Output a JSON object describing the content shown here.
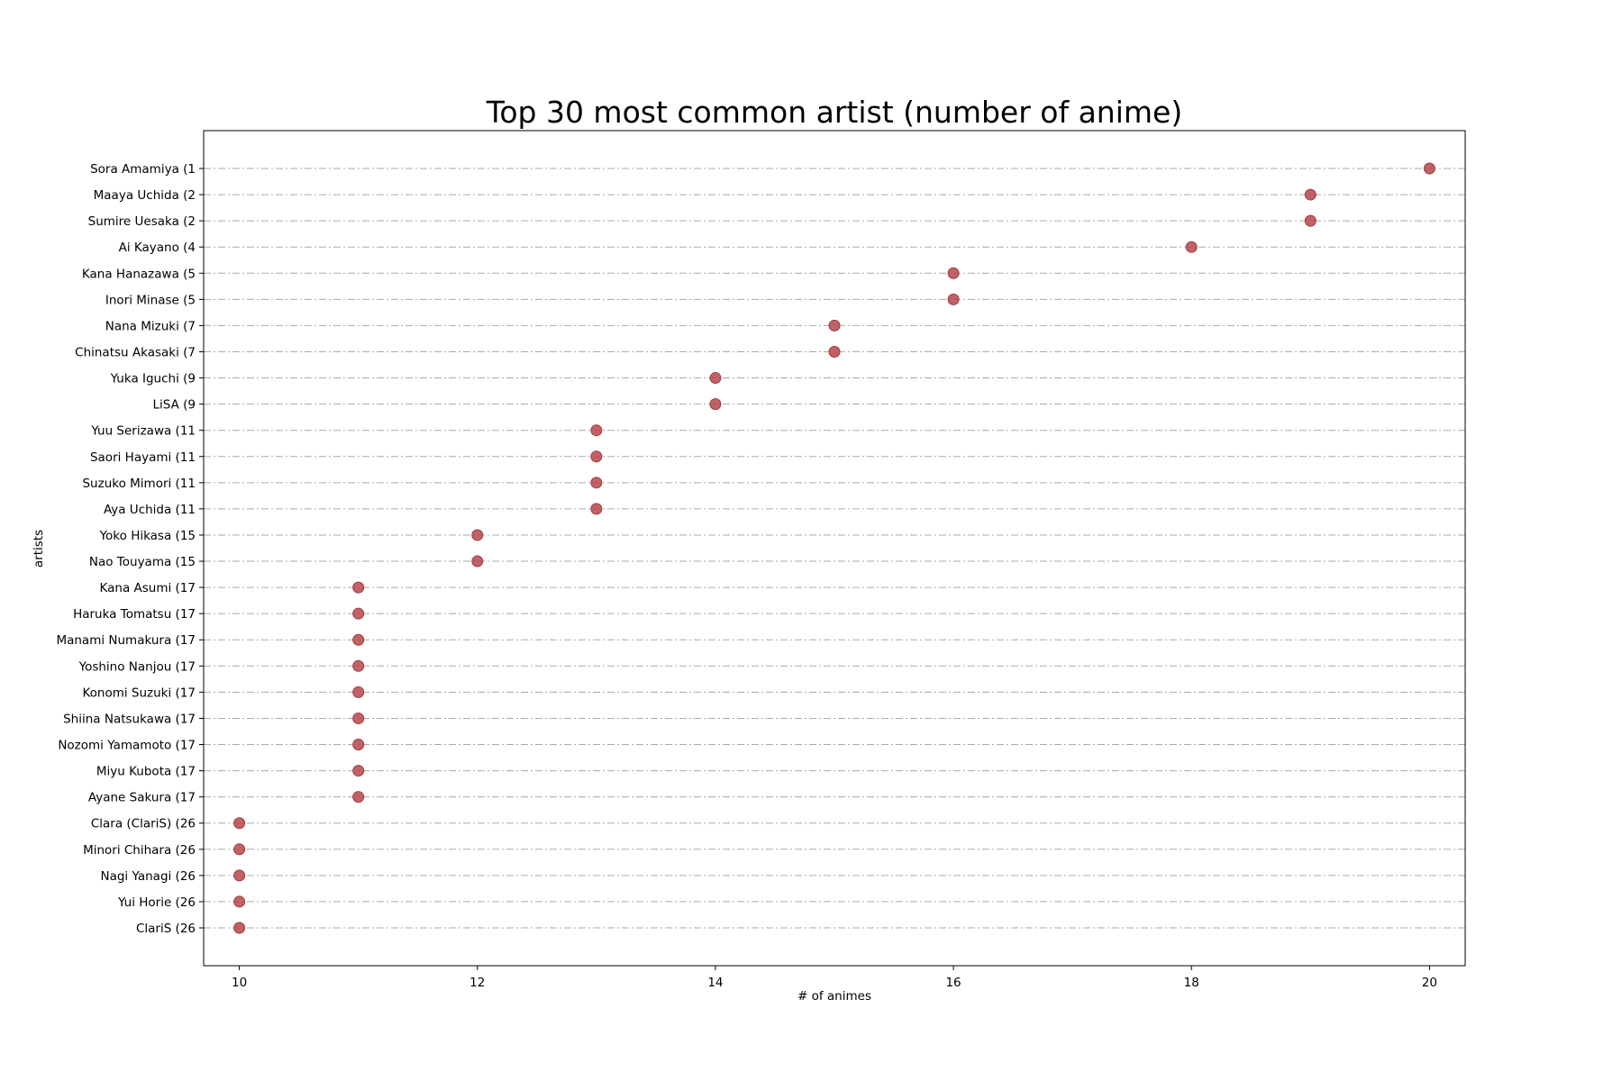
{
  "chart_data": {
    "type": "scatter",
    "title": "Top 30 most common artist (number of anime)",
    "xlabel": "# of animes",
    "ylabel": "artists",
    "xlim": [
      9.7,
      20.3
    ],
    "xticks": [
      10,
      12,
      14,
      16,
      18,
      20
    ],
    "grid": "horizontal dash-dot",
    "marker_color": "#b5474b",
    "grid_color": "#aaaaaa",
    "categories": [
      "Sora Amamiya (1",
      "Maaya Uchida (2",
      "Sumire Uesaka (2",
      "Ai Kayano (4",
      "Kana Hanazawa (5",
      "Inori Minase (5",
      "Nana Mizuki (7",
      "Chinatsu Akasaki (7",
      "Yuka Iguchi (9",
      "LiSA (9",
      "Yuu Serizawa (11",
      "Saori Hayami (11",
      "Suzuko Mimori (11",
      "Aya Uchida (11",
      "Yoko Hikasa (15",
      "Nao Touyama (15",
      "Kana Asumi (17",
      "Haruka Tomatsu (17",
      "Manami Numakura (17",
      "Yoshino Nanjou (17",
      "Konomi Suzuki (17",
      "Shiina Natsukawa (17",
      "Nozomi Yamamoto (17",
      "Miyu Kubota (17",
      "Ayane Sakura (17",
      "Clara (ClariS) (26",
      "Minori Chihara (26",
      "Nagi Yanagi (26",
      "Yui Horie (26",
      "ClariS (26"
    ],
    "values": [
      20,
      19,
      19,
      18,
      16,
      16,
      15,
      15,
      14,
      14,
      13,
      13,
      13,
      13,
      12,
      12,
      11,
      11,
      11,
      11,
      11,
      11,
      11,
      11,
      11,
      10,
      10,
      10,
      10,
      10
    ]
  }
}
